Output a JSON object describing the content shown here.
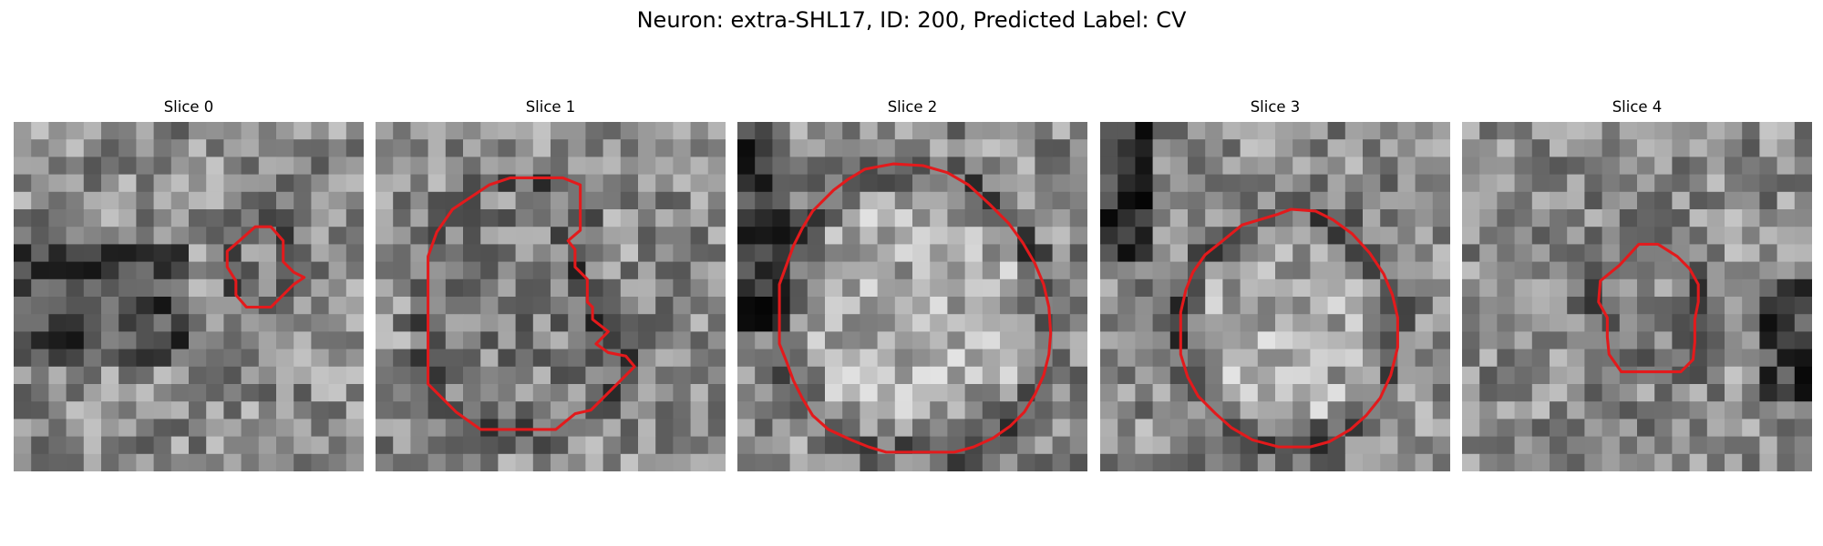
{
  "figure": {
    "title": "Neuron: extra-SHL17, ID: 200, Predicted Label: CV",
    "outline_color": "#e31a1c",
    "colormap": "gray",
    "slices": [
      {
        "title": "Slice 0",
        "id": "slice-0",
        "outline": [
          [
            12.2,
            8.3
          ],
          [
            12.2,
            7.4
          ],
          [
            12.9,
            6.8
          ],
          [
            13.8,
            6.0
          ],
          [
            14.7,
            6.0
          ],
          [
            15.4,
            6.8
          ],
          [
            15.4,
            8.0
          ],
          [
            16.0,
            8.6
          ],
          [
            16.6,
            8.9
          ],
          [
            16.0,
            9.3
          ],
          [
            15.4,
            9.9
          ],
          [
            14.7,
            10.6
          ],
          [
            13.3,
            10.6
          ],
          [
            12.7,
            9.9
          ],
          [
            12.7,
            9.1
          ]
        ]
      },
      {
        "title": "Slice 1",
        "id": "slice-1",
        "outline": [
          [
            6.5,
            3.6
          ],
          [
            4.4,
            5.0
          ],
          [
            3.5,
            6.3
          ],
          [
            3.0,
            7.7
          ],
          [
            3.0,
            15.0
          ],
          [
            4.6,
            16.6
          ],
          [
            6.0,
            17.6
          ],
          [
            10.3,
            17.6
          ],
          [
            11.4,
            16.7
          ],
          [
            12.3,
            16.5
          ],
          [
            14.3,
            14.5
          ],
          [
            14.8,
            14.0
          ],
          [
            14.3,
            13.4
          ],
          [
            13.3,
            13.2
          ],
          [
            12.6,
            12.7
          ],
          [
            13.3,
            12.0
          ],
          [
            12.4,
            11.3
          ],
          [
            12.4,
            10.6
          ],
          [
            12.1,
            10.3
          ],
          [
            12.1,
            9.0
          ],
          [
            11.4,
            8.3
          ],
          [
            11.4,
            7.3
          ],
          [
            11.0,
            6.8
          ],
          [
            11.7,
            6.2
          ],
          [
            11.7,
            3.6
          ],
          [
            10.7,
            3.2
          ],
          [
            7.7,
            3.2
          ]
        ]
      },
      {
        "title": "Slice 2",
        "id": "slice-2",
        "outline": [
          [
            7.3,
            2.7
          ],
          [
            6.3,
            3.3
          ],
          [
            5.5,
            3.9
          ],
          [
            4.3,
            5.1
          ],
          [
            3.7,
            6.1
          ],
          [
            3.2,
            7.1
          ],
          [
            2.8,
            8.2
          ],
          [
            2.4,
            9.3
          ],
          [
            2.4,
            12.7
          ],
          [
            2.8,
            13.7
          ],
          [
            3.2,
            14.8
          ],
          [
            3.7,
            15.8
          ],
          [
            4.3,
            16.8
          ],
          [
            5.2,
            17.6
          ],
          [
            6.5,
            18.2
          ],
          [
            7.5,
            18.6
          ],
          [
            8.5,
            18.9
          ],
          [
            12.4,
            18.9
          ],
          [
            13.5,
            18.6
          ],
          [
            14.6,
            18.1
          ],
          [
            15.6,
            17.4
          ],
          [
            16.4,
            16.6
          ],
          [
            17.0,
            15.6
          ],
          [
            17.5,
            14.5
          ],
          [
            17.8,
            13.3
          ],
          [
            17.9,
            12.1
          ],
          [
            17.8,
            10.6
          ],
          [
            17.5,
            9.3
          ],
          [
            17.0,
            8.1
          ],
          [
            16.3,
            6.9
          ],
          [
            15.5,
            5.8
          ],
          [
            14.4,
            4.7
          ],
          [
            13.2,
            3.6
          ],
          [
            12.0,
            2.9
          ],
          [
            10.6,
            2.5
          ],
          [
            8.9,
            2.4
          ]
        ]
      },
      {
        "title": "Slice 3",
        "id": "slice-3",
        "outline": [
          [
            10.1,
            5.3
          ],
          [
            8.1,
            5.9
          ],
          [
            7.0,
            6.8
          ],
          [
            6.0,
            7.6
          ],
          [
            5.3,
            8.6
          ],
          [
            4.9,
            9.6
          ],
          [
            4.6,
            10.9
          ],
          [
            4.6,
            13.3
          ],
          [
            5.0,
            14.6
          ],
          [
            5.6,
            15.7
          ],
          [
            6.6,
            16.7
          ],
          [
            7.5,
            17.5
          ],
          [
            8.7,
            18.2
          ],
          [
            10.2,
            18.6
          ],
          [
            12.0,
            18.6
          ],
          [
            13.1,
            18.3
          ],
          [
            14.3,
            17.6
          ],
          [
            15.2,
            16.8
          ],
          [
            16.0,
            15.8
          ],
          [
            16.6,
            14.5
          ],
          [
            17.0,
            12.9
          ],
          [
            17.0,
            11.2
          ],
          [
            16.7,
            9.9
          ],
          [
            16.2,
            8.7
          ],
          [
            15.4,
            7.5
          ],
          [
            14.4,
            6.4
          ],
          [
            13.3,
            5.6
          ],
          [
            12.3,
            5.1
          ],
          [
            10.9,
            5.0
          ]
        ]
      },
      {
        "title": "Slice 4",
        "id": "slice-4",
        "outline": [
          [
            9.0,
            8.2
          ],
          [
            7.9,
            9.1
          ],
          [
            7.8,
            10.3
          ],
          [
            8.3,
            11.2
          ],
          [
            8.3,
            12.3
          ],
          [
            8.4,
            13.3
          ],
          [
            9.1,
            14.3
          ],
          [
            10.7,
            14.3
          ],
          [
            12.5,
            14.3
          ],
          [
            13.2,
            13.6
          ],
          [
            13.3,
            12.6
          ],
          [
            13.3,
            11.3
          ],
          [
            13.5,
            10.3
          ],
          [
            13.5,
            9.3
          ],
          [
            13.0,
            8.4
          ],
          [
            12.3,
            7.7
          ],
          [
            11.2,
            7.0
          ],
          [
            10.1,
            7.0
          ]
        ]
      }
    ]
  }
}
